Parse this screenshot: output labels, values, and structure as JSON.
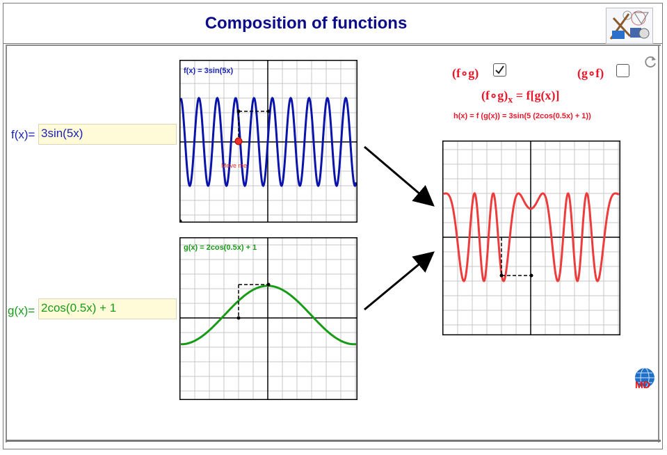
{
  "header": {
    "title": "Composition of functions"
  },
  "inputs": {
    "f_label": "f(x)=",
    "f_value": "3sin(5x)",
    "g_label": "g(x)=",
    "g_value": "2cos(0.5x) + 1"
  },
  "plots": {
    "f_caption": "f(x) = 3sin(5x)",
    "g_caption": "g(x) = 2cos(0.5x) + 1",
    "move_me": "Move me"
  },
  "composition": {
    "fog_label": "(f∘g)",
    "gof_label": "(g∘f)",
    "fog_checked": true,
    "gof_checked": false,
    "def_left": "(f∘g)",
    "def_sub": "x",
    "def_right": " = f[g(x)]",
    "hx": "h(x) = f (g(x)) = 3sin(5 (2cos(0.5x) + 1))"
  },
  "colors": {
    "f_curve": "#0a14aa",
    "g_curve": "#179b17",
    "h_curve": "#ee3b3b",
    "title": "#0c0c8a",
    "accent_red": "#e8182a"
  },
  "icons": [
    "refresh-icon",
    "geometry-tools-logo",
    "globe-md-logo",
    "arrow-icon"
  ]
}
